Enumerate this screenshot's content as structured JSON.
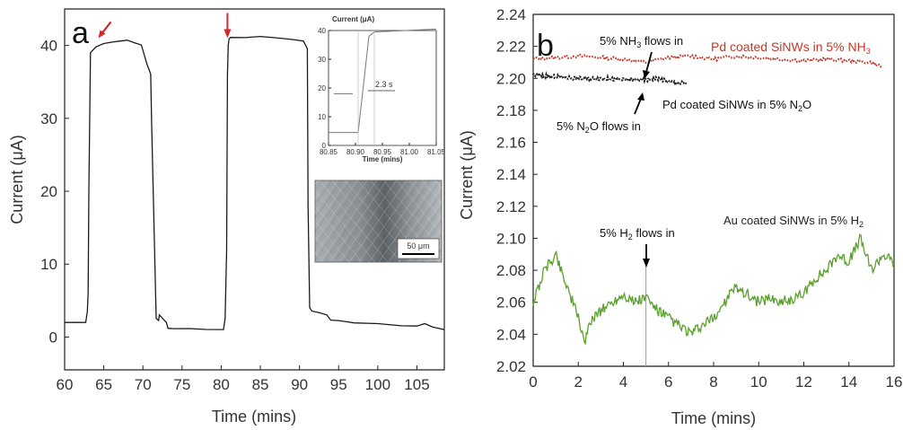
{
  "chart_data": [
    {
      "type": "line",
      "panel_label": "a",
      "xlabel": "Time (mins)",
      "ylabel": "Current (μA)",
      "xlim": [
        60,
        108.5
      ],
      "ylim": [
        -4.5,
        45
      ],
      "xticks": [
        "60",
        "65",
        "70",
        "75",
        "80",
        "85",
        "90",
        "95",
        "100",
        "105"
      ],
      "yticks": [
        "0",
        "10",
        "20",
        "30",
        "40"
      ],
      "series": [
        {
          "color": "#1a1a1a",
          "x": [
            60,
            62.7,
            62.9,
            63.0,
            63.1,
            63.3,
            64,
            65,
            66,
            67,
            68,
            69,
            69.8,
            70.5,
            71.0,
            71.1,
            71.7,
            72.0,
            72.1,
            73.0,
            73.2,
            74,
            76,
            78,
            80.3,
            80.5,
            80.7,
            80.8,
            80.9,
            81.0,
            81.2,
            83,
            85,
            87,
            89,
            90.5,
            91.0,
            91.1,
            91.3,
            91.6,
            92.5,
            93.5,
            94,
            95,
            97,
            100,
            103,
            105,
            106,
            107,
            108.5
          ],
          "y": [
            2,
            2,
            3.5,
            6,
            20,
            39,
            39.8,
            40.2,
            40.5,
            40.6,
            40.7,
            40.3,
            40.1,
            37.5,
            36,
            30,
            2.5,
            2.3,
            3,
            2,
            1.2,
            1.1,
            1.1,
            1.1,
            1.1,
            2.5,
            12,
            36,
            40,
            40.9,
            41.1,
            41.1,
            41.2,
            41.0,
            40.9,
            40.6,
            39.5,
            18,
            4,
            3.5,
            3.4,
            3.0,
            2.3,
            2.2,
            2.0,
            1.8,
            1.6,
            1.5,
            1.8,
            1.4,
            1.0
          ]
        }
      ],
      "arrows": [
        {
          "color": "#d62728",
          "x": 64.3,
          "y": 41
        },
        {
          "color": "#d62728",
          "x": 80.8,
          "y": 41
        }
      ],
      "inset_plot": {
        "title": "Current (μA)",
        "xlabel": "Time (mins)",
        "xlim": [
          80.85,
          81.05
        ],
        "ylim": [
          0,
          40
        ],
        "xticks": [
          "80.85",
          "80.90",
          "80.95",
          "81.00",
          "81.05"
        ],
        "yticks": [
          "0",
          "10",
          "20",
          "30",
          "40"
        ],
        "annotation": "2.3 s",
        "x": [
          80.85,
          80.905,
          80.925,
          80.935,
          81.05
        ],
        "y": [
          4.5,
          4.5,
          38,
          39.5,
          40.5
        ]
      },
      "inset_image": {
        "scale_bar_label": "50 μm"
      }
    },
    {
      "type": "line",
      "panel_label": "b",
      "xlabel": "Time (mins)",
      "ylabel": "Current (μA)",
      "xlim": [
        0,
        16
      ],
      "ylim": [
        2.02,
        2.24
      ],
      "xticks": [
        "0",
        "2",
        "4",
        "6",
        "8",
        "10",
        "12",
        "14",
        "16"
      ],
      "yticks": [
        "2.02",
        "2.04",
        "2.06",
        "2.08",
        "2.10",
        "2.12",
        "2.14",
        "2.16",
        "2.18",
        "2.20",
        "2.22",
        "2.24"
      ],
      "series": [
        {
          "name": "Pd coated SiNWs in 5% NH3",
          "color": "#c0392b",
          "style": "dotted",
          "x": [
            0,
            1,
            2,
            3,
            4,
            5,
            6,
            7,
            8,
            9,
            10,
            11,
            12,
            13,
            14,
            15,
            15.5
          ],
          "y": [
            2.212,
            2.213,
            2.214,
            2.213,
            2.212,
            2.21,
            2.213,
            2.214,
            2.212,
            2.214,
            2.213,
            2.212,
            2.211,
            2.212,
            2.211,
            2.21,
            2.207
          ]
        },
        {
          "name": "Pd coated SiNWs in 5% N2O",
          "color": "#222222",
          "style": "dotted",
          "x": [
            0,
            1,
            2,
            3,
            4,
            5,
            5.5,
            6,
            6.5,
            6.8
          ],
          "y": [
            2.202,
            2.201,
            2.2,
            2.2,
            2.199,
            2.199,
            2.2,
            2.198,
            2.197,
            2.197
          ]
        },
        {
          "name": "Au coated SiNWs in 5% H2",
          "color": "#5aa02c",
          "style": "noisy",
          "x": [
            0,
            0.5,
            1,
            1.5,
            2,
            2.3,
            2.6,
            3,
            3.5,
            4,
            4.5,
            5,
            5.5,
            6,
            6.5,
            7,
            7.5,
            8,
            8.5,
            9,
            9.5,
            10,
            10.5,
            11,
            11.5,
            12,
            12.5,
            13,
            13.5,
            14,
            14.5,
            15,
            15.5,
            16
          ],
          "y": [
            2.06,
            2.08,
            2.09,
            2.07,
            2.05,
            2.035,
            2.05,
            2.055,
            2.06,
            2.065,
            2.06,
            2.063,
            2.055,
            2.05,
            2.045,
            2.04,
            2.045,
            2.05,
            2.06,
            2.07,
            2.065,
            2.06,
            2.063,
            2.06,
            2.062,
            2.065,
            2.075,
            2.08,
            2.09,
            2.085,
            2.1,
            2.08,
            2.09,
            2.085
          ]
        }
      ],
      "annotations": {
        "nh3_legend": [
          "Pd coated SiNWs in 5% NH",
          "3"
        ],
        "n2o_legend": [
          "Pd coated SiNWs in 5% N",
          "2",
          "O"
        ],
        "h2_legend": [
          "Au coated SiNWs in 5% H",
          "2"
        ],
        "nh3_flow": [
          "5% NH",
          "3",
          " flows in"
        ],
        "n2o_flow": [
          "5% N",
          "2",
          "O flows in"
        ],
        "h2_flow": [
          "5% H",
          "2",
          " flows in"
        ]
      },
      "event_line_x": 5
    }
  ]
}
